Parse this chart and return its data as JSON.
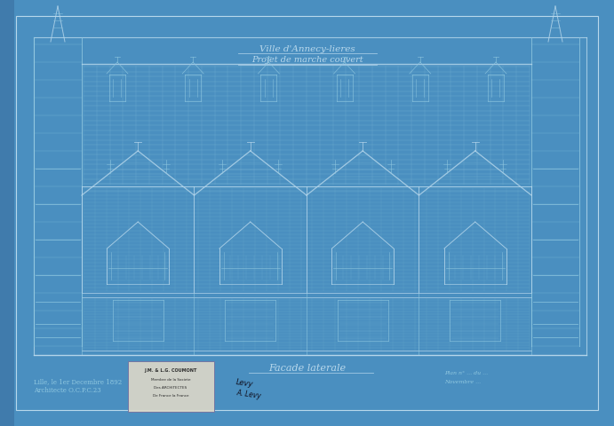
{
  "bg_color": "#4a8fc0",
  "line_color": "#7ab8d8",
  "line_color_med": "#90c8e0",
  "line_color_light": "#b8d8ec",
  "title1": "Ville d'Annecy-lieres",
  "title2": "Projet de marche couvert",
  "label_facade": "Facade laterale",
  "label_bottom_left": "Lille, le 1er Decembre 1892",
  "label_bottom_left2": "Architecte O.C.P.C.23",
  "fig_width": 6.91,
  "fig_height": 4.8,
  "dpi": 100,
  "num_bays": 4,
  "num_half_bays": 2
}
